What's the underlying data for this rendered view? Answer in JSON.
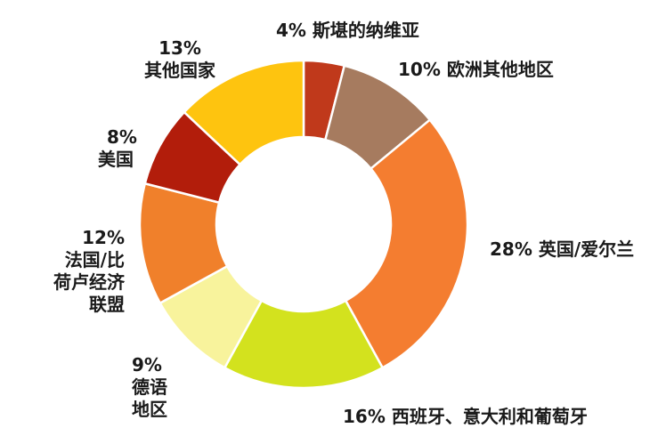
{
  "chart_data": {
    "type": "pie",
    "variant": "donut",
    "legend": "none",
    "slices": [
      {
        "category": "斯堪的纳维亚",
        "value": 4,
        "color": "#c0391b",
        "label_lines": [
          "4% 斯堪的纳维亚"
        ]
      },
      {
        "category": "欧洲其他地区",
        "value": 10,
        "color": "#a67b5f",
        "label_lines": [
          "10% 欧洲其他地区"
        ]
      },
      {
        "category": "英国/爱尔兰",
        "value": 28,
        "color": "#f47d30",
        "label_lines": [
          "28% 英国/爱尔兰"
        ]
      },
      {
        "category": "西班牙、意大利和葡萄牙",
        "value": 16,
        "color": "#d3e21e",
        "label_lines": [
          "16% 西班牙、意大利和葡萄牙"
        ]
      },
      {
        "category": "德语地区",
        "value": 9,
        "color": "#f8f39c",
        "label_lines": [
          "9%",
          "德语",
          "地区"
        ]
      },
      {
        "category": "法国/比荷卢经济联盟",
        "value": 12,
        "color": "#f0802b",
        "label_lines": [
          "12%",
          "法国/比",
          "荷卢经济",
          "联盟"
        ]
      },
      {
        "category": "美国",
        "value": 8,
        "color": "#b21d0b",
        "label_lines": [
          "8%",
          "美国"
        ]
      },
      {
        "category": "其他国家",
        "value": 13,
        "color": "#fec40f",
        "label_lines": [
          "13%",
          "其他国家"
        ]
      }
    ]
  }
}
